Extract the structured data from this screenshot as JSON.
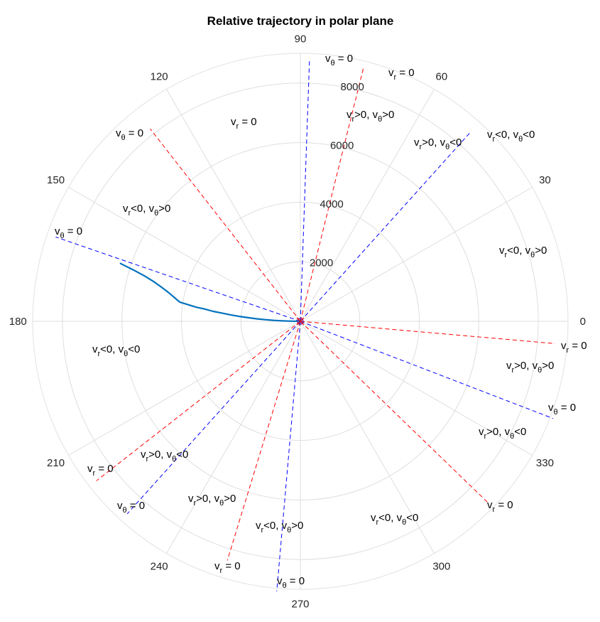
{
  "chart_data": {
    "type": "polar",
    "title": "Relative trajectory in polar plane",
    "rlim": [
      0,
      9000
    ],
    "r_ticks": [
      2000,
      4000,
      6000,
      8000
    ],
    "r_tick_labels": [
      "2000",
      "4000",
      "6000",
      "8000"
    ],
    "r_tick_label_angle_deg": 80,
    "theta_ticks_deg": [
      0,
      30,
      60,
      90,
      120,
      150,
      180,
      210,
      240,
      270,
      300,
      330
    ],
    "theta_tick_labels": [
      "0",
      "30",
      "60",
      "90",
      "120",
      "150",
      "180",
      "210",
      "240",
      "270",
      "300",
      "330"
    ],
    "grid": true,
    "colors": {
      "grid": "#dedede",
      "axis_ring": "#e6e6e6",
      "v_r_zero_line": "#ff0000",
      "v_theta_zero_line": "#0000ff",
      "trajectory": "#0072bd",
      "start_marker": "#7e2f8e"
    },
    "series": [
      {
        "theta_deg": [
          162.2,
          162.9,
          163.8,
          164.9,
          166.0,
          167.2,
          168.3,
          169.3,
          170.2,
          171.0,
          171.6,
          172.3,
          172.7,
          173.5,
          174.0,
          174.7,
          175.4,
          176.0,
          176.7,
          177.3,
          178.0,
          178.6,
          179.2,
          180
        ],
        "r": [
          6350,
          5880,
          5450,
          5100,
          4850,
          4620,
          4450,
          4310,
          4200,
          4090,
          3820,
          3540,
          3250,
          2950,
          2650,
          2360,
          2060,
          1760,
          1470,
          1180,
          890,
          590,
          300,
          0
        ]
      }
    ],
    "reference_lines": [
      {
        "kind": "v_r = 0",
        "theta_deg": 76,
        "r": 8800
      },
      {
        "kind": "v_r = 0",
        "theta_deg": 128,
        "r": 8200
      },
      {
        "kind": "v_r = 0",
        "theta_deg": 355,
        "r": 8600
      },
      {
        "kind": "v_r = 0",
        "theta_deg": 316,
        "r": 8800
      },
      {
        "kind": "v_r = 0",
        "theta_deg": 218,
        "r": 8700
      },
      {
        "kind": "v_r = 0",
        "theta_deg": 253,
        "r": 8400
      },
      {
        "kind": "v_theta = 0",
        "theta_deg": 88,
        "r": 8800
      },
      {
        "kind": "v_theta = 0",
        "theta_deg": 48,
        "r": 8500
      },
      {
        "kind": "v_theta = 0",
        "theta_deg": 161,
        "r": 8700
      },
      {
        "kind": "v_theta = 0",
        "theta_deg": 339,
        "r": 9100
      },
      {
        "kind": "v_theta = 0",
        "theta_deg": 228,
        "r": 8700
      },
      {
        "kind": "v_theta = 0",
        "theta_deg": 265,
        "r": 9100
      }
    ],
    "annotations": [
      {
        "base": "v",
        "sub": "θ",
        "tail": " = 0",
        "kind": "v_theta = 0"
      },
      {
        "base": "v",
        "sub": "r",
        "tail": " = 0",
        "kind": "v_r = 0"
      },
      {
        "base": "v",
        "sub": "r",
        "tail": ">0, v",
        "sub2": "θ",
        "tail2": ">0",
        "kind": "region"
      },
      {
        "base": "v",
        "sub": "r",
        "tail": ">0, v",
        "sub2": "θ",
        "tail2": "<0",
        "kind": "region"
      },
      {
        "base": "v",
        "sub": "r",
        "tail": "<0, v",
        "sub2": "θ",
        "tail2": "<0",
        "kind": "region"
      },
      {
        "base": "v",
        "sub": "θ",
        "tail": " = 0",
        "kind": "v_theta = 0"
      },
      {
        "base": "v",
        "sub": "r",
        "tail": " = 0",
        "kind": "v_r = 0"
      },
      {
        "base": "v",
        "sub": "r",
        "tail": "<0, v",
        "sub2": "θ",
        "tail2": ">0",
        "kind": "region"
      },
      {
        "base": "v",
        "sub": "θ",
        "tail": " = 0",
        "kind": "v_theta = 0"
      },
      {
        "base": "v",
        "sub": "r",
        "tail": "<0, v",
        "sub2": "θ",
        "tail2": ">0",
        "kind": "region"
      },
      {
        "base": "v",
        "sub": "r",
        "tail": "<0, v",
        "sub2": "θ",
        "tail2": "<0",
        "kind": "region"
      },
      {
        "base": "v",
        "sub": "r",
        "tail": " = 0",
        "kind": "v_r = 0"
      },
      {
        "base": "v",
        "sub": "r",
        "tail": ">0, v",
        "sub2": "θ",
        "tail2": ">0",
        "kind": "region"
      },
      {
        "base": "v",
        "sub": "θ",
        "tail": " = 0",
        "kind": "v_theta = 0"
      },
      {
        "base": "v",
        "sub": "r",
        "tail": ">0, v",
        "sub2": "θ",
        "tail2": "<0",
        "kind": "region"
      },
      {
        "base": "v",
        "sub": "r",
        "tail": " = 0",
        "kind": "v_r = 0"
      },
      {
        "base": "v",
        "sub": "r",
        "tail": " = 0",
        "kind": "v_r = 0"
      },
      {
        "base": "v",
        "sub": "r",
        "tail": ">0, v",
        "sub2": "θ",
        "tail2": "<0",
        "kind": "region"
      },
      {
        "base": "v",
        "sub": "θ",
        "tail": " = 0",
        "kind": "v_theta = 0"
      },
      {
        "base": "v",
        "sub": "r",
        "tail": ">0, v",
        "sub2": "θ",
        "tail2": ">0",
        "kind": "region"
      },
      {
        "base": "v",
        "sub": "r",
        "tail": "<0, v",
        "sub2": "θ",
        "tail2": ">0",
        "kind": "region"
      },
      {
        "base": "v",
        "sub": "r",
        "tail": "<0, v",
        "sub2": "θ",
        "tail2": "<0",
        "kind": "region"
      },
      {
        "base": "v",
        "sub": "r",
        "tail": " = 0",
        "kind": "v_r = 0"
      },
      {
        "base": "v",
        "sub": "θ",
        "tail": " = 0",
        "kind": "v_theta = 0"
      }
    ]
  }
}
